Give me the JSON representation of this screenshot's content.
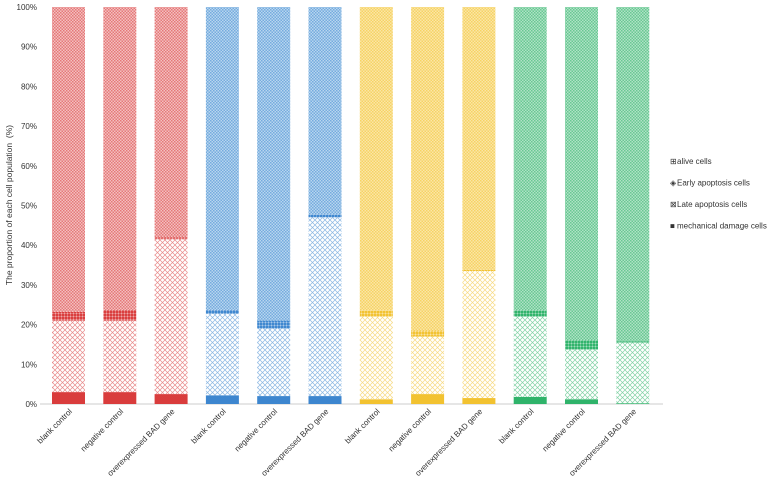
{
  "chart_data": {
    "type": "stacked-bar",
    "title": "",
    "xlabel": "",
    "ylabel": "The proportion of each cell population  (%)",
    "ylim": [
      0,
      100
    ],
    "yticks": [
      "0%",
      "10%",
      "20%",
      "30%",
      "40%",
      "50%",
      "60%",
      "70%",
      "80%",
      "90%",
      "100%"
    ],
    "categories": [
      "blank control",
      "negative control",
      "overexpressed BAD gene",
      "blank control",
      "negative control",
      "overexpressed BAD gene",
      "blank control",
      "negative control",
      "overexpressed BAD gene",
      "blank control",
      "negative control",
      "overexpressed BAD gene"
    ],
    "groups": [
      {
        "color": "#d93c3c",
        "light": "#f3c0c0"
      },
      {
        "color": "#3d86cf",
        "light": "#b8d6ef"
      },
      {
        "color": "#f2c230",
        "light": "#fbe6a6"
      },
      {
        "color": "#2fb36a",
        "light": "#b0e2c6"
      }
    ],
    "series": [
      {
        "name": "mechanical damage cells",
        "values": [
          3.0,
          3.0,
          2.5,
          2.2,
          2.0,
          2.0,
          1.2,
          2.5,
          1.5,
          1.8,
          1.2,
          0.2
        ]
      },
      {
        "name": "Late apoptosis cells",
        "values": [
          18.0,
          18.0,
          39.0,
          20.5,
          17.0,
          45.0,
          20.8,
          14.5,
          32.0,
          20.2,
          12.5,
          15.3
        ]
      },
      {
        "name": "Early apoptosis cells",
        "values": [
          2.2,
          2.7,
          0.5,
          1.0,
          2.0,
          0.7,
          1.5,
          1.5,
          0.3,
          1.6,
          2.3,
          0.3
        ]
      },
      {
        "name": "alive cells",
        "values": [
          76.8,
          76.3,
          58.0,
          76.3,
          79.0,
          52.3,
          76.5,
          81.5,
          66.2,
          76.4,
          84.0,
          84.2
        ]
      }
    ],
    "legend": {
      "position": "right",
      "items": [
        {
          "label": "alive cells",
          "symbol": "⊞"
        },
        {
          "label": "Early apoptosis cells",
          "symbol": "◈"
        },
        {
          "label": "Late apoptosis cells",
          "symbol": "⊠"
        },
        {
          "label": "mechanical damage cells",
          "symbol": "■"
        }
      ]
    },
    "grid": false
  }
}
